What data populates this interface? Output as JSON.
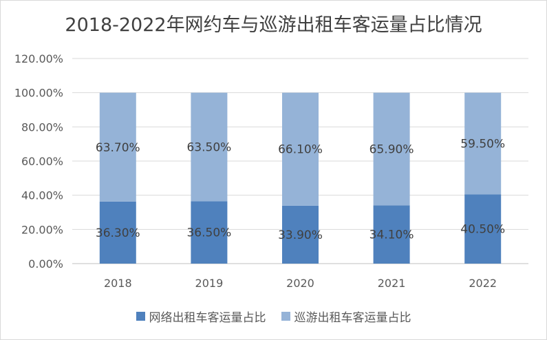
{
  "chart_data": {
    "type": "bar",
    "stacked": true,
    "title": "2018-2022年网约车与巡游出租车客运量占比情况",
    "categories": [
      "2018",
      "2019",
      "2020",
      "2021",
      "2022"
    ],
    "series": [
      {
        "name": "网络出租车客运量占比",
        "values": [
          36.3,
          36.5,
          33.9,
          34.1,
          40.5
        ],
        "labels": [
          "36.30%",
          "36.50%",
          "33.90%",
          "34.10%",
          "40.50%"
        ],
        "color": "#4f81bd"
      },
      {
        "name": "巡游出租车客运量占比",
        "values": [
          63.7,
          63.5,
          66.1,
          65.9,
          59.5
        ],
        "labels": [
          "63.70%",
          "63.50%",
          "66.10%",
          "65.90%",
          "59.50%"
        ],
        "color": "#95b3d7"
      }
    ],
    "yticks": [
      "0.00%",
      "20.00%",
      "40.00%",
      "60.00%",
      "80.00%",
      "100.00%",
      "120.00%"
    ],
    "ylim": [
      0,
      120
    ],
    "grid": true,
    "legend": "bottom"
  }
}
